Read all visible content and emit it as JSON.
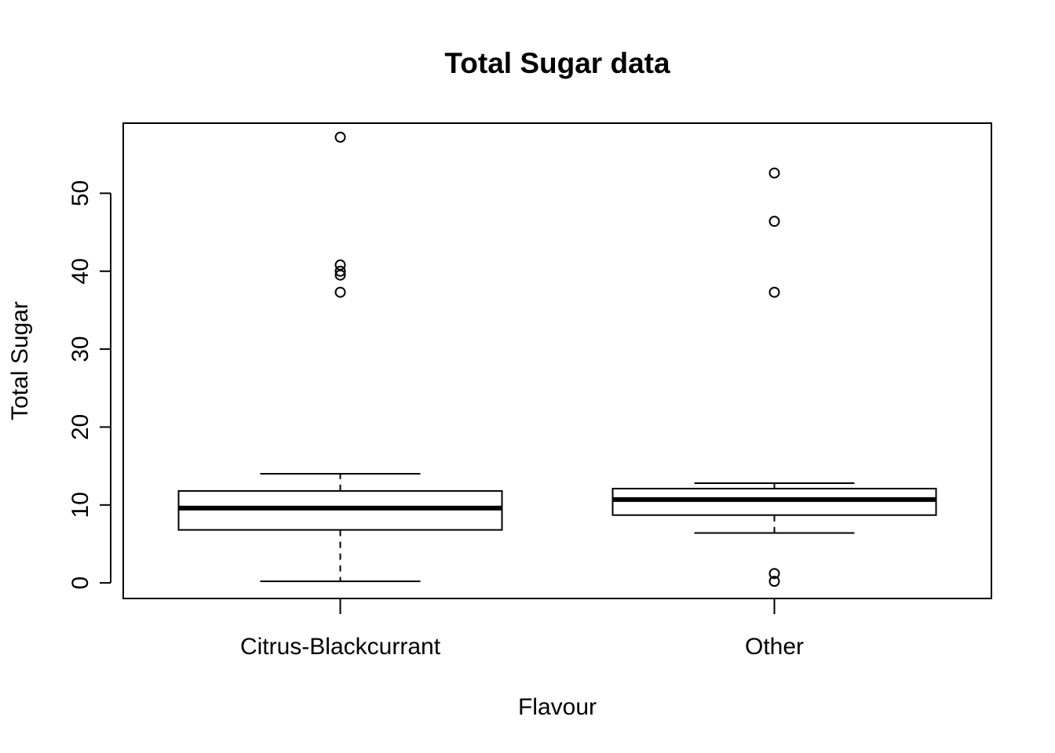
{
  "chart_data": {
    "type": "box",
    "title": "Total Sugar data",
    "xlabel": "Flavour",
    "ylabel": "Total Sugar",
    "ylim": [
      -2,
      59
    ],
    "yticks": [
      0,
      10,
      20,
      30,
      40,
      50
    ],
    "grid": false,
    "legend": "none",
    "categories": [
      "Citrus-Blackcurrant",
      "Other"
    ],
    "boxes": [
      {
        "category": "Citrus-Blackcurrant",
        "whisker_low": 0.2,
        "q1": 6.8,
        "median": 9.6,
        "q3": 11.8,
        "whisker_high": 14.0,
        "outliers": [
          57.2,
          40.8,
          40.0,
          39.5,
          37.3
        ]
      },
      {
        "category": "Other",
        "whisker_low": 6.4,
        "q1": 8.7,
        "median": 10.7,
        "q3": 12.1,
        "whisker_high": 12.8,
        "outliers": [
          52.6,
          46.4,
          37.3,
          1.2,
          0.2
        ]
      }
    ]
  }
}
